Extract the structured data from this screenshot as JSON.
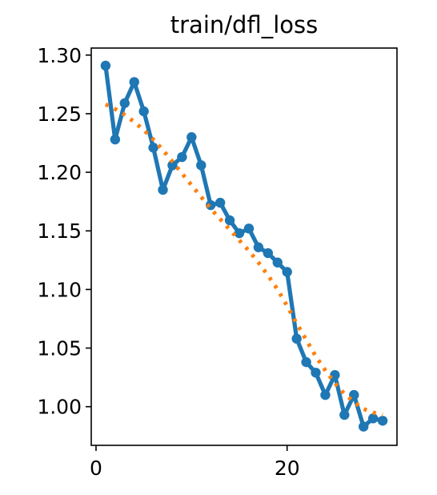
{
  "chart_data": {
    "type": "line",
    "title": "train/dfl_loss",
    "xlabel": "",
    "ylabel": "",
    "xlim": [
      -0.5,
      31.5
    ],
    "ylim": [
      0.967,
      1.306
    ],
    "xticks": [
      0,
      20
    ],
    "yticks": [
      1.0,
      1.05,
      1.1,
      1.15,
      1.2,
      1.25,
      1.3
    ],
    "grid": false,
    "legend": "none",
    "series": [
      {
        "style": "line-markers",
        "color": "#1f77b4",
        "x": [
          1,
          2,
          3,
          4,
          5,
          6,
          7,
          8,
          9,
          10,
          11,
          12,
          13,
          14,
          15,
          16,
          17,
          18,
          19,
          20,
          21,
          22,
          23,
          24,
          25,
          26,
          27,
          28,
          29,
          30
        ],
        "values": [
          1.291,
          1.228,
          1.259,
          1.277,
          1.252,
          1.221,
          1.185,
          1.206,
          1.213,
          1.23,
          1.206,
          1.172,
          1.174,
          1.159,
          1.148,
          1.152,
          1.136,
          1.131,
          1.123,
          1.115,
          1.058,
          1.038,
          1.029,
          1.01,
          1.027,
          0.993,
          1.01,
          0.983,
          0.99,
          0.988
        ]
      },
      {
        "style": "dotted",
        "color": "#ff7f0e",
        "x": [
          1,
          2,
          3,
          4,
          5,
          6,
          7,
          8,
          9,
          10,
          11,
          12,
          13,
          14,
          15,
          16,
          17,
          18,
          19,
          20,
          21,
          22,
          23,
          24,
          25,
          26,
          27,
          28,
          29,
          30
        ],
        "values": [
          1.258,
          1.254,
          1.249,
          1.243,
          1.236,
          1.228,
          1.219,
          1.209,
          1.199,
          1.189,
          1.179,
          1.169,
          1.16,
          1.151,
          1.142,
          1.133,
          1.123,
          1.112,
          1.1,
          1.086,
          1.071,
          1.057,
          1.043,
          1.031,
          1.02,
          1.011,
          1.004,
          0.998,
          0.995,
          0.993
        ]
      }
    ]
  }
}
